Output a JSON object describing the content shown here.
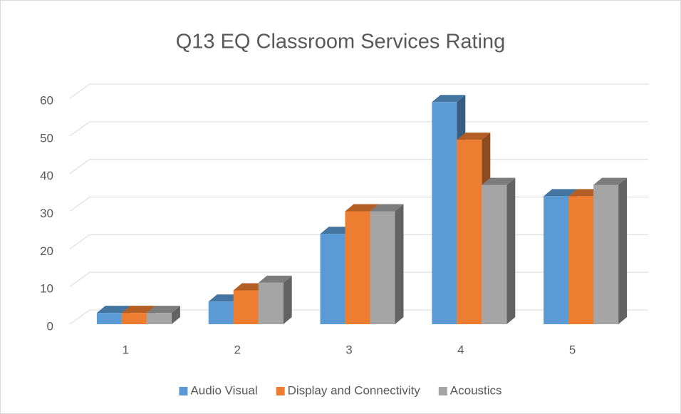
{
  "chart_data": {
    "type": "bar",
    "title": "Q13 EQ Classroom Services Rating",
    "categories": [
      "1",
      "2",
      "3",
      "4",
      "5"
    ],
    "series": [
      {
        "name": "Audio Visual",
        "color": "#5b9bd5",
        "values": [
          3,
          6,
          24,
          59,
          34
        ]
      },
      {
        "name": "Display and Connectivity",
        "color": "#ed7d31",
        "values": [
          3,
          9,
          30,
          49,
          34
        ]
      },
      {
        "name": "Acoustics",
        "color": "#a5a5a5",
        "values": [
          3,
          11,
          30,
          37,
          37
        ]
      }
    ],
    "ylim": [
      0,
      60
    ],
    "yticks": [
      0,
      10,
      20,
      30,
      40,
      50,
      60
    ],
    "grid": true,
    "legend": "bottom"
  }
}
